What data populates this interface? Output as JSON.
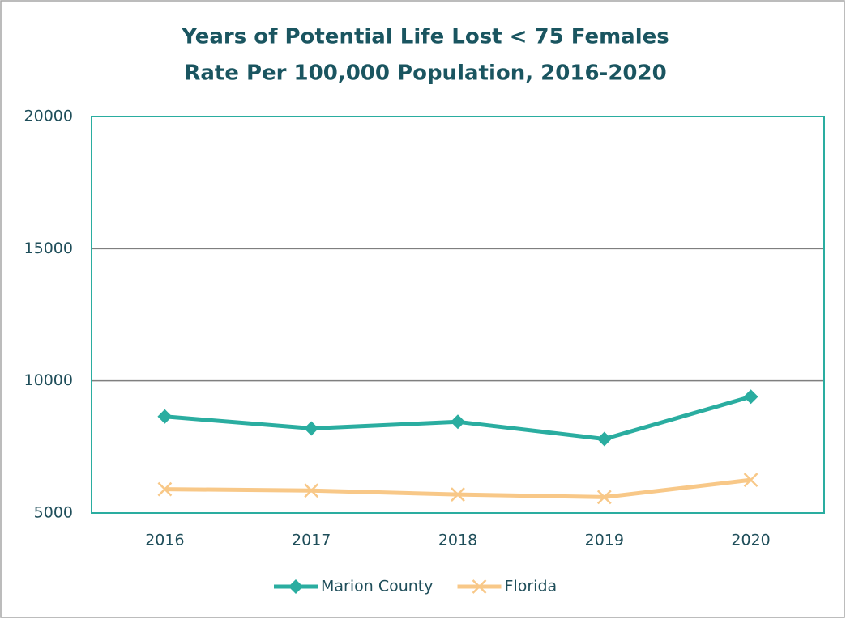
{
  "chart_data": {
    "type": "line",
    "title": [
      "Years of Potential Life Lost < 75 Females",
      "Rate Per 100,000 Population, 2016-2020"
    ],
    "categories": [
      "2016",
      "2017",
      "2018",
      "2019",
      "2020"
    ],
    "series": [
      {
        "name": "Marion County",
        "color": "#2aada0",
        "marker": "diamond",
        "values": [
          8650,
          8200,
          8450,
          7800,
          9400
        ]
      },
      {
        "name": "Florida",
        "color": "#f8c888",
        "marker": "x",
        "values": [
          5900,
          5850,
          5700,
          5600,
          6250
        ]
      }
    ],
    "ylim": [
      5000,
      20000
    ],
    "yticks": [
      5000,
      10000,
      15000,
      20000
    ],
    "grid": true,
    "legend": "bottom"
  }
}
